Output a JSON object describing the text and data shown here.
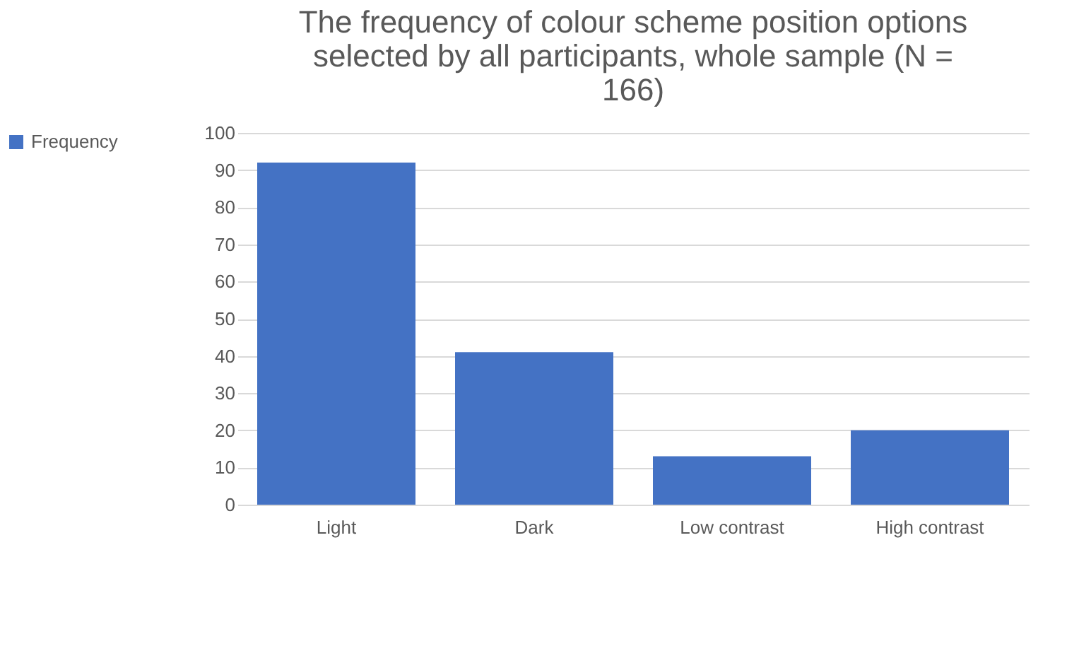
{
  "chart_data": {
    "type": "bar",
    "title": "The frequency of colour scheme position options selected by all participants, whole sample (N = 166)",
    "categories": [
      "Light",
      "Dark",
      "Low contrast",
      "High contrast"
    ],
    "series": [
      {
        "name": "Frequency",
        "color": "#4472c4",
        "values": [
          92,
          41,
          13,
          20
        ]
      }
    ],
    "ylim": [
      0,
      100
    ],
    "yticks": [
      0,
      10,
      20,
      30,
      40,
      50,
      60,
      70,
      80,
      90,
      100
    ],
    "grid": "y",
    "legend": "left"
  }
}
